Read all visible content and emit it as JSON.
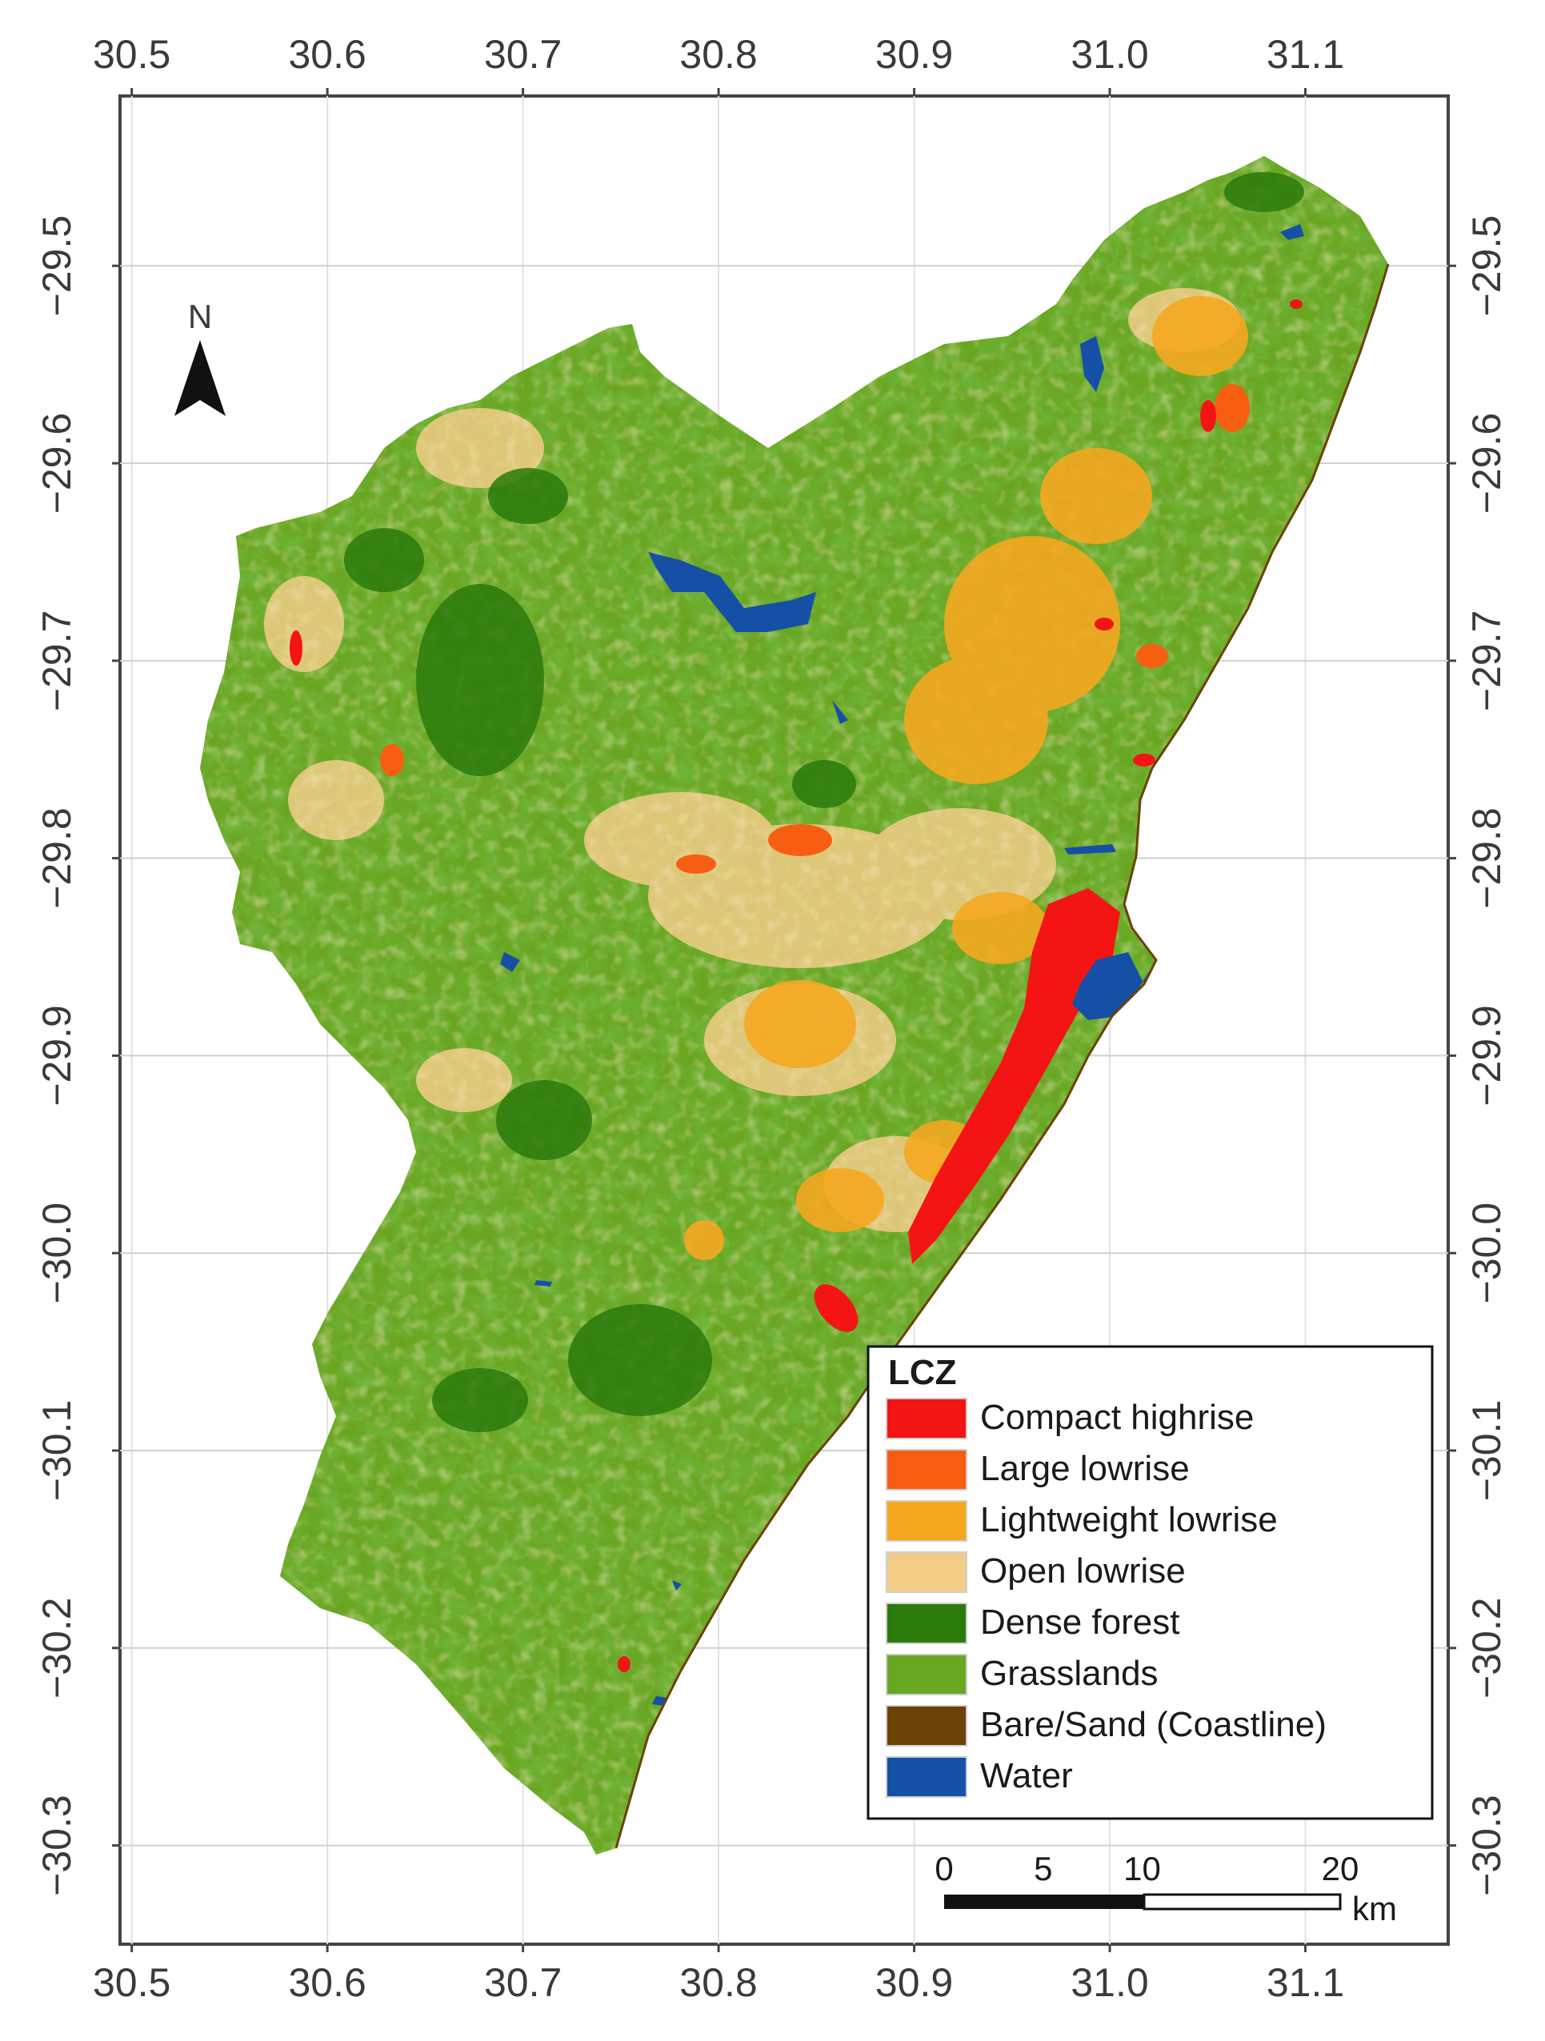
{
  "map": {
    "x_ticks": [
      "30.5",
      "30.6",
      "30.7",
      "30.8",
      "30.9",
      "31.0",
      "31.1"
    ],
    "y_ticks": [
      "−29.5",
      "−29.6",
      "−29.7",
      "−29.8",
      "−29.9",
      "−30.0",
      "−30.1",
      "−30.2",
      "−30.3"
    ],
    "x_range": [
      30.494,
      31.173
    ],
    "y_range": [
      -30.35,
      -29.414
    ],
    "grid": true,
    "north_label": "N",
    "colors": {
      "compact_highrise": "#f41414",
      "large_lowrise": "#f75e12",
      "lightweight_lowrise": "#f5a720",
      "open_lowrise": "#f3cd87",
      "dense_forest": "#2a7a0c",
      "grasslands": "#69a622",
      "bare_sand": "#6b4208",
      "water": "#1550a6"
    }
  },
  "legend": {
    "title": "LCZ",
    "items": [
      {
        "label": "Compact highrise",
        "color": "#f41414"
      },
      {
        "label": "Large lowrise",
        "color": "#f75e12"
      },
      {
        "label": "Lightweight lowrise",
        "color": "#f5a720"
      },
      {
        "label": "Open lowrise",
        "color": "#f3cd87"
      },
      {
        "label": "Dense forest",
        "color": "#2a7a0c"
      },
      {
        "label": "Grasslands",
        "color": "#69a622"
      },
      {
        "label": "Bare/Sand (Coastline)",
        "color": "#6b4208"
      },
      {
        "label": "Water",
        "color": "#1550a6"
      }
    ]
  },
  "scale_bar": {
    "labels": [
      "0",
      "5",
      "10",
      "20"
    ],
    "unit": "km"
  }
}
